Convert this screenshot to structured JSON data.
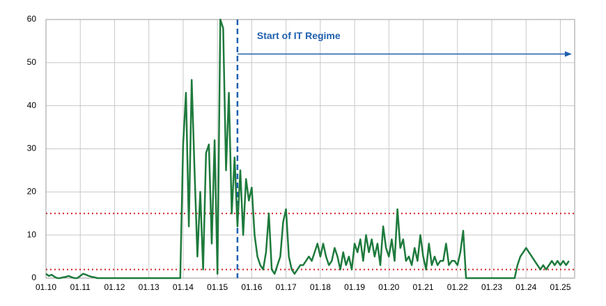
{
  "chart_data": {
    "type": "line",
    "x": [
      "01.10",
      "02.10",
      "03.10",
      "04.10",
      "05.10",
      "06.10",
      "07.10",
      "08.10",
      "09.10",
      "10.10",
      "11.10",
      "12.10",
      "01.11",
      "02.11",
      "03.11",
      "04.11",
      "05.11",
      "06.11",
      "07.11",
      "08.11",
      "09.11",
      "10.11",
      "11.11",
      "12.11",
      "01.12",
      "02.12",
      "03.12",
      "04.12",
      "05.12",
      "06.12",
      "07.12",
      "08.12",
      "09.12",
      "10.12",
      "11.12",
      "12.12",
      "01.13",
      "02.13",
      "03.13",
      "04.13",
      "05.13",
      "06.13",
      "07.13",
      "08.13",
      "09.13",
      "10.13",
      "11.13",
      "12.13",
      "01.14",
      "02.14",
      "03.14",
      "04.14",
      "05.14",
      "06.14",
      "07.14",
      "08.14",
      "09.14",
      "10.14",
      "11.14",
      "12.14",
      "01.15",
      "02.15",
      "03.15",
      "04.15",
      "05.15",
      "06.15",
      "07.15",
      "08.15",
      "09.15",
      "10.15",
      "11.15",
      "12.15",
      "01.16",
      "02.16",
      "03.16",
      "04.16",
      "05.16",
      "06.16",
      "07.16",
      "08.16",
      "09.16",
      "10.16",
      "11.16",
      "12.16",
      "01.17",
      "02.17",
      "03.17",
      "04.17",
      "05.17",
      "06.17",
      "07.17",
      "08.17",
      "09.17",
      "10.17",
      "11.17",
      "12.17",
      "01.18",
      "02.18",
      "03.18",
      "04.18",
      "05.18",
      "06.18",
      "07.18",
      "08.18",
      "09.18",
      "10.18",
      "11.18",
      "12.18",
      "01.19",
      "02.19",
      "03.19",
      "04.19",
      "05.19",
      "06.19",
      "07.19",
      "08.19",
      "09.19",
      "10.19",
      "11.19",
      "12.19",
      "01.20",
      "02.20",
      "03.20",
      "04.20",
      "05.20",
      "06.20",
      "07.20",
      "08.20",
      "09.20",
      "10.20",
      "11.20",
      "12.20",
      "01.21",
      "02.21",
      "03.21",
      "04.21",
      "05.21",
      "06.21",
      "07.21",
      "08.21",
      "09.21",
      "10.21",
      "11.21",
      "12.21",
      "01.22",
      "02.22",
      "03.22",
      "04.22",
      "05.22",
      "06.22",
      "07.22",
      "08.22",
      "09.22",
      "10.22",
      "11.22",
      "12.22",
      "01.23",
      "02.23",
      "03.23",
      "04.23",
      "05.23",
      "06.23",
      "07.23",
      "08.23",
      "09.23",
      "10.23",
      "11.23",
      "12.23",
      "01.24",
      "02.24",
      "03.24",
      "04.24",
      "05.24",
      "06.24",
      "07.24",
      "08.24",
      "09.24",
      "10.24",
      "11.24",
      "12.24",
      "01.25",
      "02.25",
      "03.25",
      "04.25"
    ],
    "values": [
      1,
      0.5,
      0.8,
      0.3,
      0,
      0,
      0.2,
      0.3,
      0.5,
      0.2,
      0,
      0,
      0.5,
      1,
      0.8,
      0.5,
      0.3,
      0.2,
      0,
      0,
      0,
      0,
      0,
      0,
      0,
      0,
      0,
      0,
      0,
      0,
      0,
      0,
      0,
      0,
      0,
      0,
      0,
      0,
      0,
      0,
      0,
      0,
      0,
      0,
      0,
      0,
      0,
      0,
      31,
      43,
      12,
      46,
      25,
      5,
      20,
      2,
      29,
      31,
      8,
      32,
      1,
      60,
      58,
      25,
      43,
      15,
      28,
      12,
      25,
      10,
      23,
      18,
      21,
      10,
      5,
      3,
      2,
      6,
      15,
      2,
      1,
      3,
      5,
      13,
      16,
      5,
      2,
      1,
      2,
      3,
      3,
      4,
      5,
      4,
      6,
      8,
      5,
      8,
      5,
      3,
      4,
      7,
      5,
      2,
      6,
      3,
      5,
      2,
      8,
      6,
      9,
      4,
      10,
      6,
      9,
      5,
      8,
      3,
      12,
      7,
      5,
      9,
      4,
      16,
      7,
      9,
      4,
      5,
      3,
      7,
      4,
      10,
      5,
      2,
      8,
      3,
      5,
      3,
      4,
      4,
      8,
      3,
      4,
      4,
      3,
      6,
      11,
      0,
      0,
      0,
      0,
      0,
      0,
      0,
      0,
      0,
      0,
      0,
      0,
      0,
      0,
      0,
      0,
      0,
      0,
      3,
      5,
      6,
      7,
      6,
      5,
      4,
      3,
      2,
      3,
      2,
      3,
      4,
      3,
      4,
      3,
      4,
      3,
      4
    ],
    "color": "#1e7a3c",
    "xlim": [
      "01.10",
      "06.25"
    ],
    "xticks": [
      "01.10",
      "01.11",
      "01.12",
      "01.13",
      "01.14",
      "01.15",
      "01.16",
      "01.17",
      "01.18",
      "01.19",
      "01.20",
      "01.21",
      "01.22",
      "01.23",
      "01.24",
      "01.25"
    ],
    "ylim": [
      0,
      60
    ],
    "yticks": [
      0,
      10,
      20,
      30,
      40,
      50,
      60
    ],
    "grid": true,
    "hlines": [
      {
        "value": 15,
        "color": "#d0202a"
      },
      {
        "value": 2,
        "color": "#d0202a"
      }
    ],
    "vline": {
      "x": "08.15",
      "color": "#1f5fae"
    },
    "annotation": {
      "text": "Start of IT Regime",
      "x_from": "08.15",
      "x_to": "05.25",
      "y": 52,
      "color": "#1f5fae"
    }
  }
}
